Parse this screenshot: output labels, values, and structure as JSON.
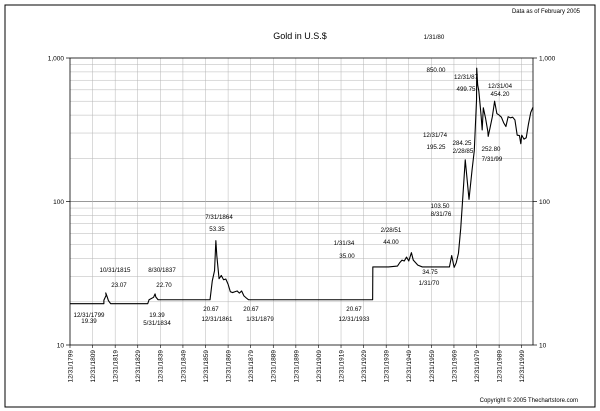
{
  "header": {
    "data_note": "Data as of February 2005"
  },
  "footer": {
    "copyright": "Copyright © 2005 Thechartstore.com"
  },
  "chart_data": {
    "type": "line",
    "title": "Gold in U.S.$",
    "xlabel": "",
    "ylabel": "",
    "y_scale": "log",
    "ylim": [
      10,
      1000
    ],
    "xlim": [
      "12/31/1799",
      "12/31/2004"
    ],
    "y_ticks": [
      "10",
      "100",
      "1,000"
    ],
    "x_ticks": [
      "12/31/1799",
      "12/31/1809",
      "12/31/1819",
      "12/31/1829",
      "12/31/1839",
      "12/31/1849",
      "12/31/1859",
      "12/31/1869",
      "12/31/1879",
      "12/31/1889",
      "12/31/1899",
      "12/31/1909",
      "12/31/1919",
      "12/31/1929",
      "12/31/1939",
      "12/31/1949",
      "12/31/1959",
      "12/31/1969",
      "12/31/1979",
      "12/31/1989",
      "12/31/1999"
    ],
    "grid": true,
    "legend": "none",
    "series": [
      {
        "color": "#000000",
        "points": [
          [
            "12/31/1799",
            19.39
          ],
          [
            "12/31/1814",
            19.39
          ],
          [
            "12/31/1814",
            20.5
          ],
          [
            "12/31/1815",
            22.2
          ],
          [
            "10/31/1815",
            23.07
          ],
          [
            "6/30/1816",
            21.6
          ],
          [
            "12/31/1816",
            20.4
          ],
          [
            "12/31/1817",
            19.39
          ],
          [
            "12/31/1833",
            19.39
          ],
          [
            "5/31/1834",
            19.39
          ],
          [
            "12/31/1834",
            20.67
          ],
          [
            "12/31/1836",
            21.5
          ],
          [
            "8/30/1837",
            22.7
          ],
          [
            "12/31/1837",
            21.6
          ],
          [
            "12/31/1838",
            20.67
          ],
          [
            "12/31/1860",
            20.67
          ],
          [
            "12/31/1861",
            20.67
          ],
          [
            "12/31/1862",
            28.0
          ],
          [
            "12/31/1863",
            33.0
          ],
          [
            "7/31/1864",
            53.35
          ],
          [
            "12/31/1864",
            42.0
          ],
          [
            "12/31/1865",
            29.0
          ],
          [
            "12/31/1866",
            30.5
          ],
          [
            "12/31/1867",
            28.5
          ],
          [
            "12/31/1868",
            28.8
          ],
          [
            "12/31/1869",
            26.5
          ],
          [
            "12/31/1870",
            23.5
          ],
          [
            "12/31/1871",
            23.2
          ],
          [
            "12/31/1872",
            23.5
          ],
          [
            "12/31/1873",
            23.8
          ],
          [
            "12/31/1874",
            23.0
          ],
          [
            "12/31/1875",
            23.8
          ],
          [
            "12/31/1876",
            22.0
          ],
          [
            "12/31/1877",
            21.3
          ],
          [
            "12/31/1878",
            20.7
          ],
          [
            "1/31/1879",
            20.67
          ],
          [
            "12/31/1933",
            20.67
          ],
          [
            "1/31/1934",
            35.0
          ],
          [
            "12/31/1940",
            35.0
          ],
          [
            "12/31/1944",
            35.5
          ],
          [
            "12/31/1945",
            37.5
          ],
          [
            "12/31/1946",
            39.0
          ],
          [
            "12/31/1947",
            38.5
          ],
          [
            "12/31/1948",
            41.0
          ],
          [
            "12/31/1949",
            38.5
          ],
          [
            "2/28/1951",
            44.0
          ],
          [
            "12/31/1951",
            39.0
          ],
          [
            "12/31/1953",
            36.0
          ],
          [
            "12/31/1955",
            35.0
          ],
          [
            "12/31/1967",
            35.0
          ],
          [
            "12/31/1968",
            42.0
          ],
          [
            "12/31/1969",
            35.2
          ],
          [
            "1/31/1970",
            34.75
          ],
          [
            "12/31/1970",
            37.4
          ],
          [
            "12/31/1971",
            43.6
          ],
          [
            "12/31/1972",
            64.9
          ],
          [
            "12/31/1973",
            112.0
          ],
          [
            "12/31/1974",
            195.25
          ],
          [
            "8/31/1976",
            103.5
          ],
          [
            "12/31/1977",
            165.0
          ],
          [
            "12/31/1978",
            226.0
          ],
          [
            "12/31/1979",
            512.0
          ],
          [
            "1/31/1980",
            850.0
          ],
          [
            "6/30/1980",
            650.0
          ],
          [
            "12/31/1980",
            590.0
          ],
          [
            "12/31/1981",
            400.0
          ],
          [
            "6/30/1982",
            315.0
          ],
          [
            "12/31/1982",
            450.0
          ],
          [
            "12/31/1983",
            380.0
          ],
          [
            "12/31/1984",
            308.0
          ],
          [
            "2/28/1985",
            284.25
          ],
          [
            "12/31/1985",
            327.0
          ],
          [
            "12/31/1986",
            390.0
          ],
          [
            "12/31/1987",
            499.75
          ],
          [
            "12/31/1988",
            410.0
          ],
          [
            "12/31/1989",
            400.0
          ],
          [
            "12/31/1990",
            387.0
          ],
          [
            "12/31/1991",
            354.0
          ],
          [
            "12/31/1992",
            333.0
          ],
          [
            "12/31/1993",
            390.0
          ],
          [
            "12/31/1994",
            383.0
          ],
          [
            "12/31/1995",
            387.0
          ],
          [
            "12/31/1996",
            370.0
          ],
          [
            "12/31/1997",
            290.0
          ],
          [
            "12/31/1998",
            288.0
          ],
          [
            "7/31/1999",
            252.8
          ],
          [
            "12/31/1999",
            290.0
          ],
          [
            "12/31/2000",
            272.0
          ],
          [
            "12/31/2001",
            278.0
          ],
          [
            "12/31/2002",
            347.0
          ],
          [
            "12/31/2003",
            417.0
          ],
          [
            "12/31/2004",
            454.2
          ]
        ]
      }
    ],
    "annotations": [
      {
        "date": "12/31/1799",
        "value": "19.39"
      },
      {
        "date": "10/31/1815",
        "value": "23.07"
      },
      {
        "date": "5/31/1834",
        "value": "19.39"
      },
      {
        "date": "8/30/1837",
        "value": "22.70"
      },
      {
        "date": "7/31/1864",
        "value": "53.35"
      },
      {
        "date": "12/31/1861",
        "value": "20.67"
      },
      {
        "date": "1/31/1879",
        "value": "20.67"
      },
      {
        "date": "12/31/1933",
        "value": "20.67"
      },
      {
        "date": "1/31/34",
        "value": "35.00"
      },
      {
        "date": "2/28/51",
        "value": "44.00"
      },
      {
        "date": "1/31/70",
        "value": "34.75"
      },
      {
        "date": "12/31/74",
        "value": "195.25"
      },
      {
        "date": "8/31/76",
        "value": "103.50"
      },
      {
        "date": "1/31/80",
        "value": "850.00"
      },
      {
        "date": "12/31/87",
        "value": "499.75"
      },
      {
        "date": "2/28/85",
        "value": "284.25"
      },
      {
        "date": "7/31/99",
        "value": "252.80"
      },
      {
        "date": "12/31/04",
        "value": "454.20"
      }
    ]
  }
}
